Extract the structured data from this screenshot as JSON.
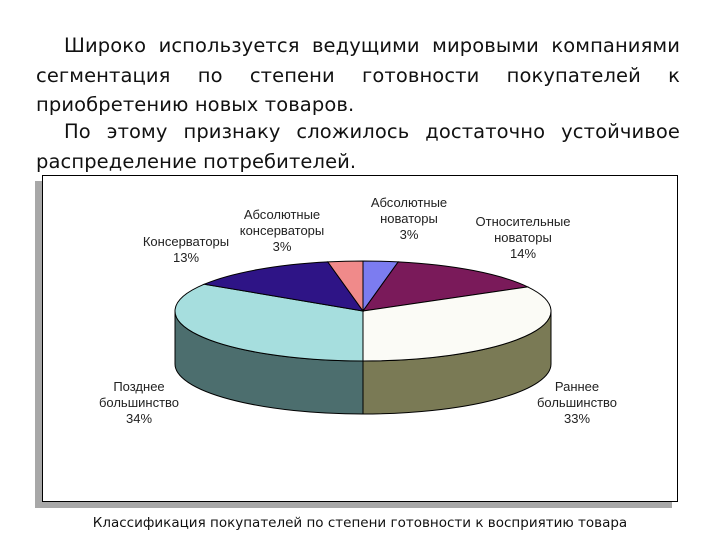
{
  "text": {
    "paragraph_1": "Широко используется ведущими мировыми компаниями сегментация по степени готовности покупателей к приобретению новых товаров.",
    "paragraph_2": "По этому признаку сложилось достаточно устойчивое распределение потребителей."
  },
  "chart_data": {
    "type": "pie",
    "title": "",
    "caption": "Классификация покупателей по степени готовности к восприятию товара",
    "slices": [
      {
        "label_lines": [
          "Абсолютные",
          "новаторы"
        ],
        "value": 3,
        "value_label": "3%",
        "color": "#7c7cf0"
      },
      {
        "label_lines": [
          "Относительные",
          "новаторы"
        ],
        "value": 14,
        "value_label": "14%",
        "color": "#7a1a5a"
      },
      {
        "label_lines": [
          "Раннее",
          "большинство"
        ],
        "value": 33,
        "value_label": "33%",
        "color": "#fbfbf6"
      },
      {
        "label_lines": [
          "Позднее",
          "большинство"
        ],
        "value": 34,
        "value_label": "34%",
        "color": "#a6dede"
      },
      {
        "label_lines": [
          "Консерваторы"
        ],
        "value": 13,
        "value_label": "13%",
        "color": "#2e1486"
      },
      {
        "label_lines": [
          "Абсолютные",
          "консерваторы"
        ],
        "value": 3,
        "value_label": "3%",
        "color": "#f08a8a"
      }
    ],
    "side_colors": {
      "right": "#7a7a55",
      "left": "#4c6e6e"
    }
  }
}
